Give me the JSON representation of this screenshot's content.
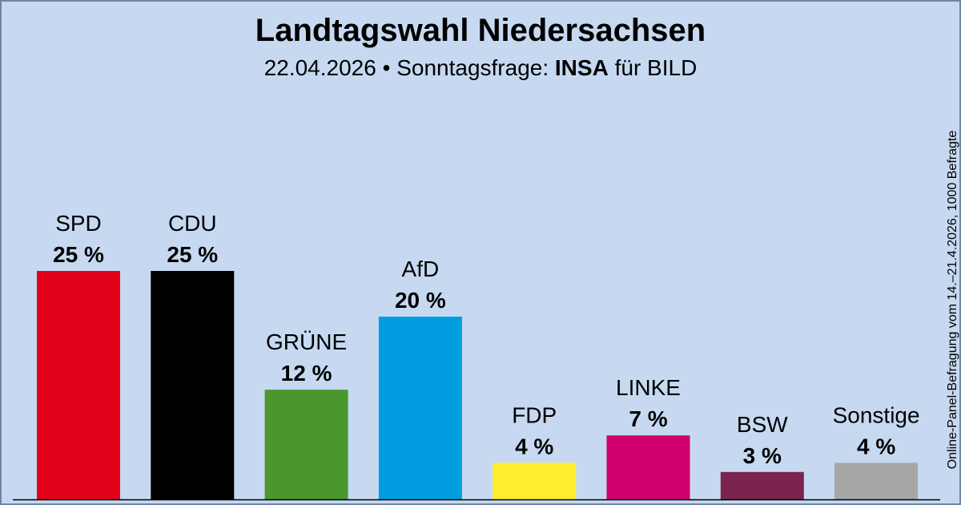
{
  "header": {
    "title": "Landtagswahl Niedersachsen",
    "date": "22.04.2026",
    "separator": "•",
    "poll_type": "Sonntagsfrage:",
    "institute": "INSA",
    "client": "für BILD"
  },
  "source_note": "Online-Panel-Befragung vom 14.–21.4.2026, 1000 Befragte",
  "chart_data": {
    "type": "bar",
    "title": "Landtagswahl Niedersachsen",
    "subtitle": "22.04.2026 • Sonntagsfrage: INSA für BILD",
    "categories": [
      "SPD",
      "CDU",
      "GRÜNE",
      "AfD",
      "FDP",
      "LINKE",
      "BSW",
      "Sonstige"
    ],
    "values": [
      25,
      25,
      12,
      20,
      4,
      7,
      3,
      4
    ],
    "value_labels": [
      "25 %",
      "25 %",
      "12 %",
      "20 %",
      "4 %",
      "7 %",
      "3 %",
      "4 %"
    ],
    "colors": [
      "#e3001b",
      "#000000",
      "#4a972e",
      "#009ee0",
      "#ffed2e",
      "#d0006f",
      "#7b2450",
      "#a6a6a6"
    ],
    "background": "#c6d9f1",
    "ylim": [
      0,
      25
    ],
    "grid": false,
    "legend": "none"
  }
}
